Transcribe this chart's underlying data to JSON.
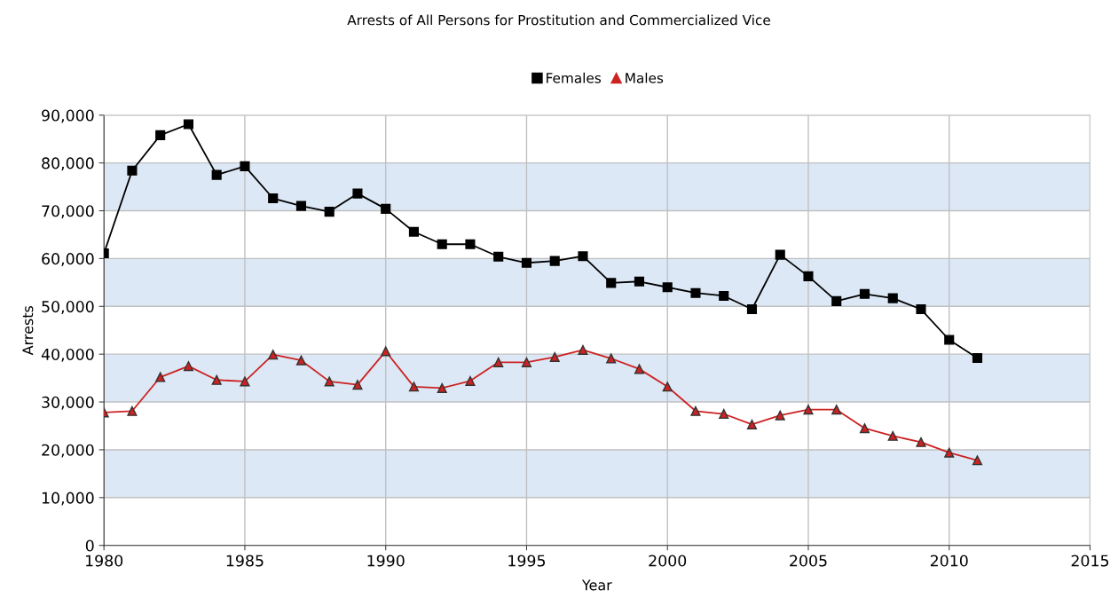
{
  "chart_data": {
    "type": "line",
    "title": "Arrests of All Persons for Prostitution and Commercialized Vice",
    "xlabel": "Year",
    "ylabel": "Arrests",
    "x": [
      1980,
      1981,
      1982,
      1983,
      1984,
      1985,
      1986,
      1987,
      1988,
      1989,
      1990,
      1991,
      1992,
      1993,
      1994,
      1995,
      1996,
      1997,
      1998,
      1999,
      2000,
      2001,
      2002,
      2003,
      2004,
      2005,
      2006,
      2007,
      2008,
      2009,
      2010,
      2011
    ],
    "series": [
      {
        "name": "Females",
        "color": "#000000",
        "marker": "square",
        "values": [
          61100,
          78400,
          85800,
          88100,
          77500,
          79300,
          72600,
          71000,
          69800,
          73600,
          70400,
          65600,
          63000,
          63000,
          60400,
          59100,
          59500,
          60500,
          54900,
          55200,
          54000,
          52800,
          52200,
          49400,
          60800,
          56300,
          51100,
          52600,
          51700,
          49400,
          43000,
          39200
        ]
      },
      {
        "name": "Males",
        "color": "#cc2222",
        "marker": "triangle",
        "values": [
          27800,
          28100,
          35200,
          37500,
          34600,
          34300,
          39900,
          38700,
          34300,
          33600,
          40600,
          33200,
          32900,
          34400,
          38300,
          38300,
          39400,
          40900,
          39100,
          36900,
          33200,
          28100,
          27500,
          25300,
          27200,
          28400,
          28400,
          24500,
          22900,
          21600,
          19400,
          17800
        ]
      }
    ],
    "xlim": [
      1980,
      2015
    ],
    "xticks": [
      1980,
      1985,
      1990,
      1995,
      2000,
      2005,
      2010,
      2015
    ],
    "ylim": [
      0,
      90000
    ],
    "yticks": [
      {
        "value": 0,
        "label": "0"
      },
      {
        "value": 10000,
        "label": "10,000"
      },
      {
        "value": 20000,
        "label": "20,000"
      },
      {
        "value": 30000,
        "label": "30,000"
      },
      {
        "value": 40000,
        "label": "40,000"
      },
      {
        "value": 50000,
        "label": "50,000"
      },
      {
        "value": 60000,
        "label": "60,000"
      },
      {
        "value": 70000,
        "label": "70,000"
      },
      {
        "value": 80000,
        "label": "80,000"
      },
      {
        "value": 90000,
        "label": "90,000"
      }
    ],
    "bands": [
      {
        "axis": "y",
        "from": 10000,
        "to": 20000,
        "color": "#dce8f5"
      },
      {
        "axis": "y",
        "from": 30000,
        "to": 40000,
        "color": "#dce8f5"
      },
      {
        "axis": "y",
        "from": 50000,
        "to": 60000,
        "color": "#dce8f5"
      },
      {
        "axis": "y",
        "from": 70000,
        "to": 80000,
        "color": "#dce8f5"
      }
    ],
    "grid": true,
    "legend": "top",
    "line_style": "solid"
  }
}
